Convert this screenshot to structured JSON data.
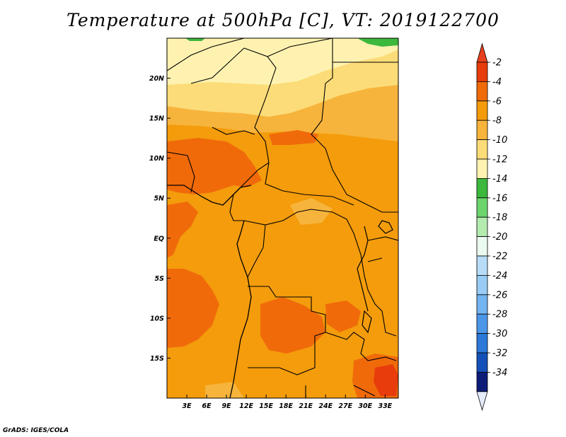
{
  "title": "Temperature at 500hPa [C], VT: 2019122700",
  "credit": "GrADS: IGES/COLA",
  "map": {
    "lon_range": [
      0,
      35
    ],
    "lat_range": [
      -20,
      25
    ],
    "x_ticks": [
      "3E",
      "6E",
      "9E",
      "12E",
      "15E",
      "18E",
      "21E",
      "24E",
      "27E",
      "30E",
      "33E"
    ],
    "y_ticks": [
      "20N",
      "15N",
      "10N",
      "5N",
      "EQ",
      "5S",
      "10S",
      "15S"
    ]
  },
  "colorbar": {
    "labels": [
      "-2",
      "-4",
      "-6",
      "-8",
      "-10",
      "-12",
      "-14",
      "-16",
      "-18",
      "-20",
      "-22",
      "-24",
      "-26",
      "-28",
      "-30",
      "-32",
      "-34"
    ],
    "colors": [
      "#e83c0c",
      "#f06a0a",
      "#f49b0b",
      "#f7b43c",
      "#fcdc78",
      "#fff2b0",
      "#3cb83c",
      "#6cd56c",
      "#b4ecb0",
      "#eafaf0",
      "#b8dcf8",
      "#98ccf4",
      "#74b4f0",
      "#4c96e8",
      "#2c78d8",
      "#1450b8",
      "#0c1c78"
    ],
    "top_arrow_color": "#e8401c",
    "bottom_arrow_color": "#e6ecfc"
  },
  "fields": {
    "base_color": "#f49c0c",
    "north_band_color": "#f7b43c",
    "pale_band_color": "#fcdc78",
    "top_band_color": "#fff2b0",
    "warm_patch_color": "#f06a0a",
    "hot_patch_color": "#e83c0c",
    "green_patch_color": "#3cb83c"
  }
}
